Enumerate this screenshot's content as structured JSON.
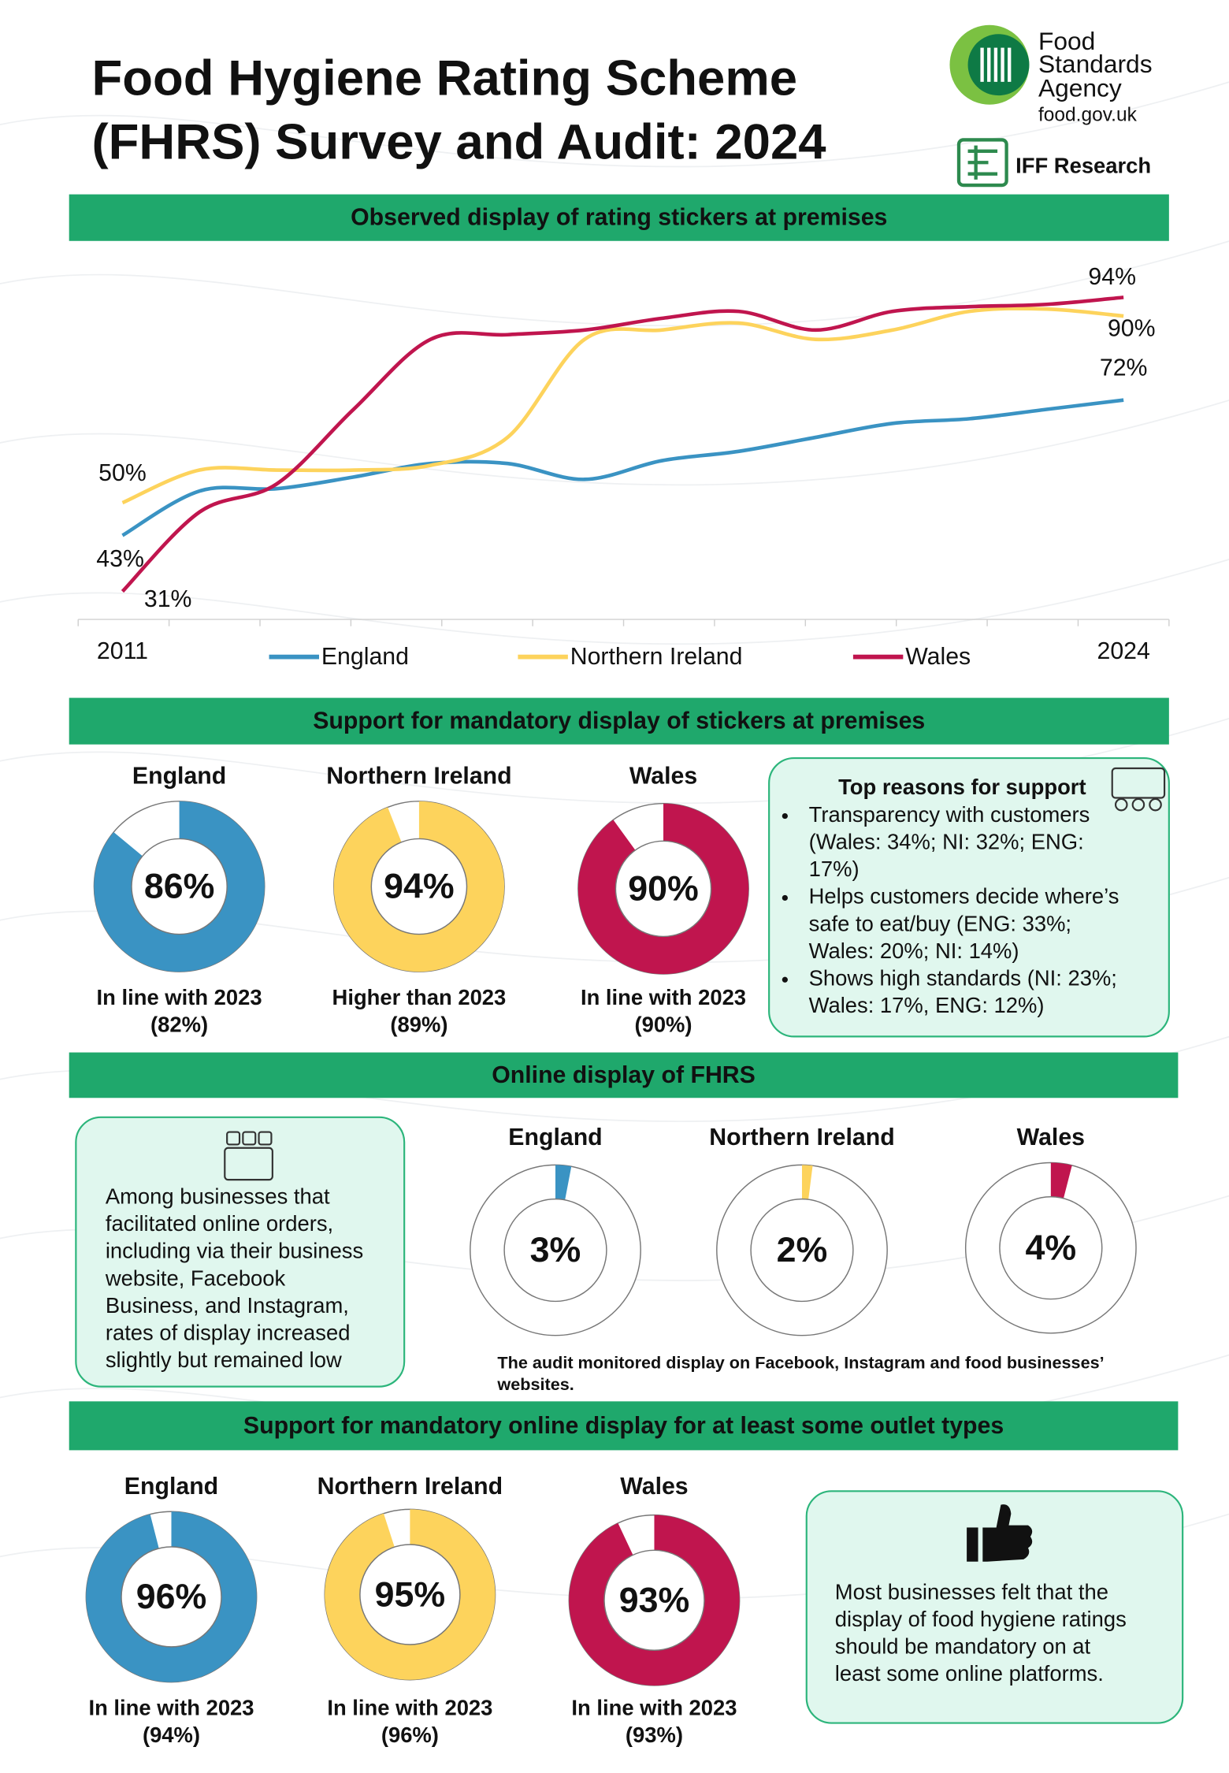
{
  "header": {
    "title": [
      "Food Hygiene Rating Scheme",
      "(FHRS) Survey and Audit: 2024"
    ],
    "logo_fsa": [
      "Food",
      "Standards",
      "Agency",
      "food.gov.uk"
    ],
    "logo_iff": "IFF Research"
  },
  "display_section": {
    "heading": "Observed display of rating stickers at premises"
  },
  "chart_data": {
    "type": "line",
    "categories": [
      "2011",
      null,
      null,
      null,
      null,
      null,
      null,
      null,
      null,
      null,
      null,
      null,
      null,
      "2024"
    ],
    "ylim": [
      25,
      100
    ],
    "legend": "bottom",
    "series": [
      {
        "name": "England",
        "color": "#3a93c3",
        "values": [
          43,
          52.5,
          53,
          55.5,
          58.4,
          58.4,
          55,
          59,
          61,
          64,
          67,
          68,
          70,
          72
        ],
        "value_labels": [
          "43%",
          null,
          null,
          null,
          null,
          null,
          null,
          null,
          null,
          null,
          null,
          null,
          null,
          "72%"
        ]
      },
      {
        "name": "Northern Ireland",
        "color": "#fdd35c",
        "values": [
          50,
          57,
          57,
          57,
          58,
          64,
          85,
          87,
          88.5,
          85,
          87,
          91,
          91.5,
          90
        ],
        "value_labels": [
          "50%",
          null,
          null,
          null,
          null,
          null,
          null,
          null,
          null,
          null,
          null,
          null,
          null,
          "90%"
        ]
      },
      {
        "name": "Wales",
        "color": "#c0154e",
        "values": [
          31,
          48,
          54,
          70,
          85,
          86,
          87,
          89.5,
          91,
          87,
          91,
          92,
          92.5,
          94
        ],
        "value_labels": [
          "31%",
          null,
          null,
          null,
          null,
          null,
          null,
          null,
          null,
          null,
          null,
          null,
          null,
          "94%"
        ]
      }
    ]
  },
  "support_section": {
    "heading": "Support for mandatory display of stickers at premises",
    "charts": [
      {
        "type": "donut",
        "name": "England",
        "value": 86,
        "value_label": "86%",
        "color": "#3a93c3",
        "note": [
          "In line with 2023",
          "(82%)"
        ]
      },
      {
        "type": "donut",
        "name": "Northern Ireland",
        "value": 94,
        "value_label": "94%",
        "color": "#fdd35c",
        "note": [
          "Higher than 2023",
          "(89%)"
        ]
      },
      {
        "type": "donut",
        "name": "Wales",
        "value": 90,
        "value_label": "90%",
        "color": "#c0154e",
        "note": [
          "In line with 2023",
          "(90%)"
        ]
      }
    ],
    "reasons": {
      "title": "Top reasons for support",
      "items": [
        [
          "Transparency with customers",
          "(Wales: 34%; NI: 32%; ENG:",
          "17%)"
        ],
        [
          "Helps customers decide where’s",
          "safe to eat/buy (ENG: 33%;",
          "Wales: 20%; NI: 14%)"
        ],
        [
          "Shows high standards (NI: 23%;",
          "Wales: 17%, ENG: 12%)"
        ]
      ]
    }
  },
  "online_section": {
    "heading": "Online display of FHRS",
    "text": [
      "Among businesses that",
      "facilitated online orders,",
      "including via their business",
      "website, Facebook",
      "Business, and Instagram,",
      "rates of display increased",
      "slightly but remained low"
    ],
    "charts": [
      {
        "type": "donut",
        "name": "England",
        "value": 3,
        "value_label": "3%",
        "color": "#3a93c3"
      },
      {
        "type": "donut",
        "name": "Northern Ireland",
        "value": 2,
        "value_label": "2%",
        "color": "#fdd35c"
      },
      {
        "type": "donut",
        "name": "Wales",
        "value": 4,
        "value_label": "4%",
        "color": "#c0154e"
      }
    ],
    "footnote": [
      "The audit monitored display on Facebook, Instagram and food businesses’",
      "websites."
    ]
  },
  "mandatory_online_section": {
    "heading": "Support for mandatory online display for at least some outlet types",
    "charts": [
      {
        "type": "donut",
        "name": "England",
        "value": 96,
        "value_label": "96%",
        "color": "#3a93c3",
        "note": [
          "In line with 2023",
          "(94%)"
        ]
      },
      {
        "type": "donut",
        "name": "Northern Ireland",
        "value": 95,
        "value_label": "95%",
        "color": "#fdd35c",
        "note": [
          "In line with 2023",
          "(96%)"
        ]
      },
      {
        "type": "donut",
        "name": "Wales",
        "value": 93,
        "value_label": "93%",
        "color": "#c0154e",
        "note": [
          "In line with 2023",
          "(93%)"
        ]
      }
    ],
    "text": [
      "Most businesses felt that the",
      "display of food hygiene ratings",
      "should be mandatory on at",
      "least some online platforms."
    ]
  }
}
